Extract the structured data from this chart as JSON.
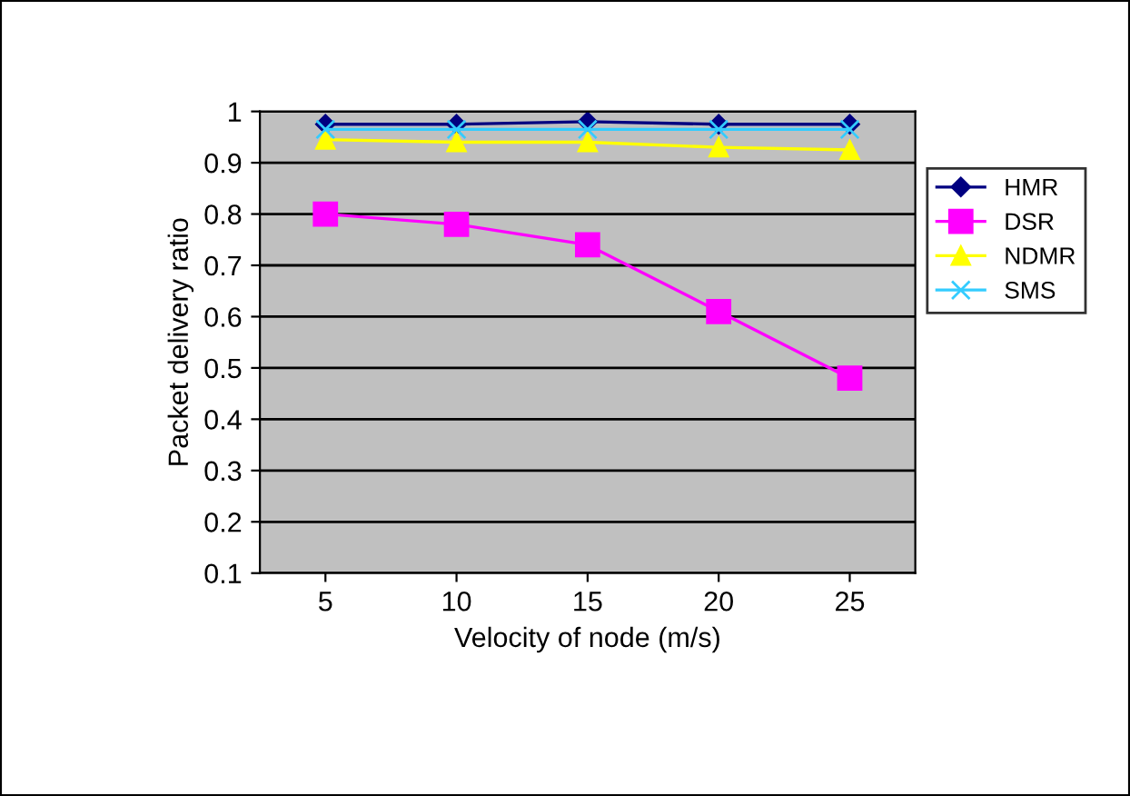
{
  "chart_data": {
    "type": "line",
    "xlabel": "Velocity of node (m/s)",
    "ylabel": "Packet delivery ratio",
    "categories": [
      "5",
      "10",
      "15",
      "20",
      "25"
    ],
    "series": [
      {
        "name": "HMR",
        "color": "#000080",
        "values": [
          0.975,
          0.975,
          0.98,
          0.975,
          0.975
        ],
        "marker": "diamond"
      },
      {
        "name": "DSR",
        "color": "#ff00ff",
        "values": [
          0.8,
          0.78,
          0.74,
          0.61,
          0.48
        ],
        "marker": "square"
      },
      {
        "name": "NDMR",
        "color": "#ffff00",
        "values": [
          0.945,
          0.94,
          0.94,
          0.93,
          0.925
        ],
        "marker": "triangle"
      },
      {
        "name": "SMS",
        "color": "#33ccff",
        "values": [
          0.965,
          0.965,
          0.965,
          0.965,
          0.965
        ],
        "marker": "cross"
      }
    ],
    "ylim": [
      0.1,
      1
    ],
    "yticks": [
      0.1,
      0.2,
      0.3,
      0.4,
      0.5,
      0.6,
      0.7,
      0.8,
      0.9,
      1
    ],
    "grid": "y",
    "legend": "right"
  }
}
